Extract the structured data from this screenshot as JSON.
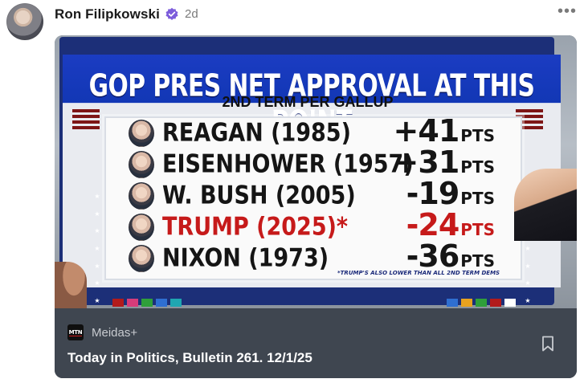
{
  "post": {
    "author": "Ron Filipkowski",
    "verified_icon": "verified-badge-icon",
    "time": "2d",
    "more_icon": "more-options-icon",
    "more_label": "•••"
  },
  "graphic": {
    "title": "GOP PRES NET APPROVAL AT THIS POINT",
    "subtitle": "2ND TERM PER GALLUP",
    "rows": [
      {
        "name": "REAGAN (1985)",
        "score": "+41",
        "unit": "PTS"
      },
      {
        "name": "EISENHOWER (1957)",
        "score": "+31",
        "unit": "PTS"
      },
      {
        "name": "W. BUSH (2005)",
        "score": "-19",
        "unit": "PTS"
      },
      {
        "name": "TRUMP (2025)*",
        "score": "-24",
        "unit": "PTS"
      },
      {
        "name": "NIXON (1973)",
        "score": "-36",
        "unit": "PTS"
      }
    ],
    "footnote": "*TRUMP'S ALSO LOWER THAN ALL 2ND TERM DEMS",
    "accent_blue": "#1b3cc2",
    "accent_red": "#c61a1a"
  },
  "link_card": {
    "source_logo_text": "MTN",
    "source_name": "Meidas+",
    "headline": "Today in Politics, Bulletin 261. 12/1/25",
    "bookmark_icon": "bookmark-icon"
  }
}
